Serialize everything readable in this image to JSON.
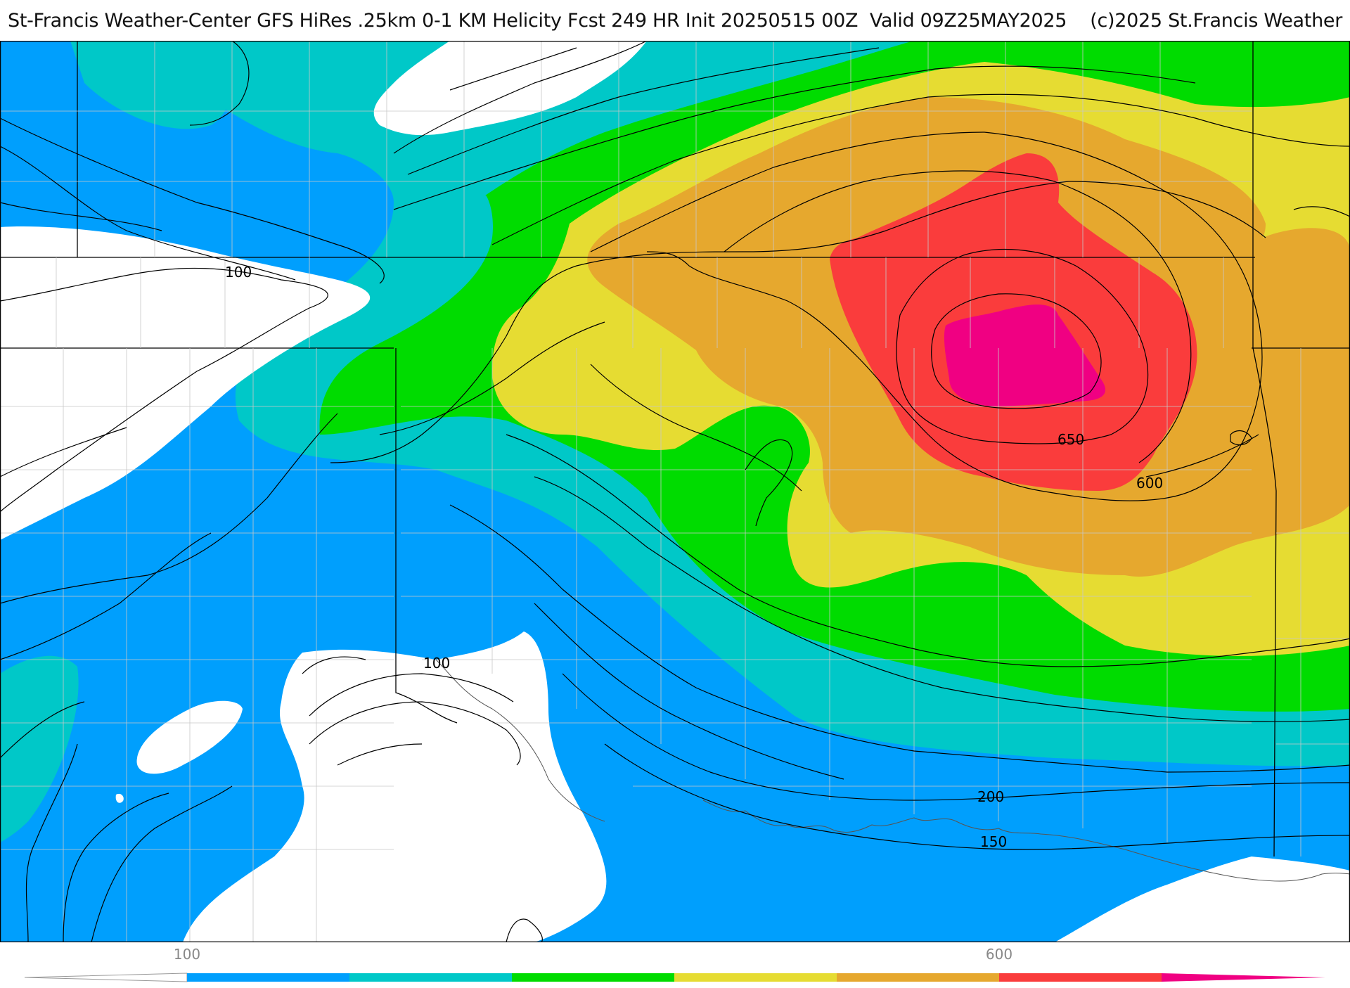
{
  "header": {
    "title": "St-Francis Weather-Center GFS HiRes .25km 0-1 KM Helicity Fcst 249 HR Init 20250515 00Z  Valid 09Z25MAY2025    (c)2025 St.Francis Weather"
  },
  "map": {
    "product": "0-1 KM Helicity",
    "palette": {
      "below_100": "#ffffff",
      "100_200": "#009ffd",
      "200_300": "#00c8c8",
      "300_400": "#00dc00",
      "400_500": "#e6dc32",
      "500_600": "#e6a82e",
      "600_700": "#fa3c3c",
      "700_plus": "#f00082"
    },
    "contour_labels": [
      {
        "text": "100"
      },
      {
        "text": "650"
      },
      {
        "text": "600"
      },
      {
        "text": "100"
      },
      {
        "text": "200"
      },
      {
        "text": "150"
      }
    ]
  },
  "colorbar": {
    "tick_labels": [
      "100",
      "600"
    ],
    "segments": [
      "#009ffd",
      "#00c8c8",
      "#00dc00",
      "#e6dc32",
      "#e6a82e",
      "#fa3c3c"
    ],
    "left_arrow_color": "#ffffff",
    "right_arrow_color": "#f00082"
  }
}
